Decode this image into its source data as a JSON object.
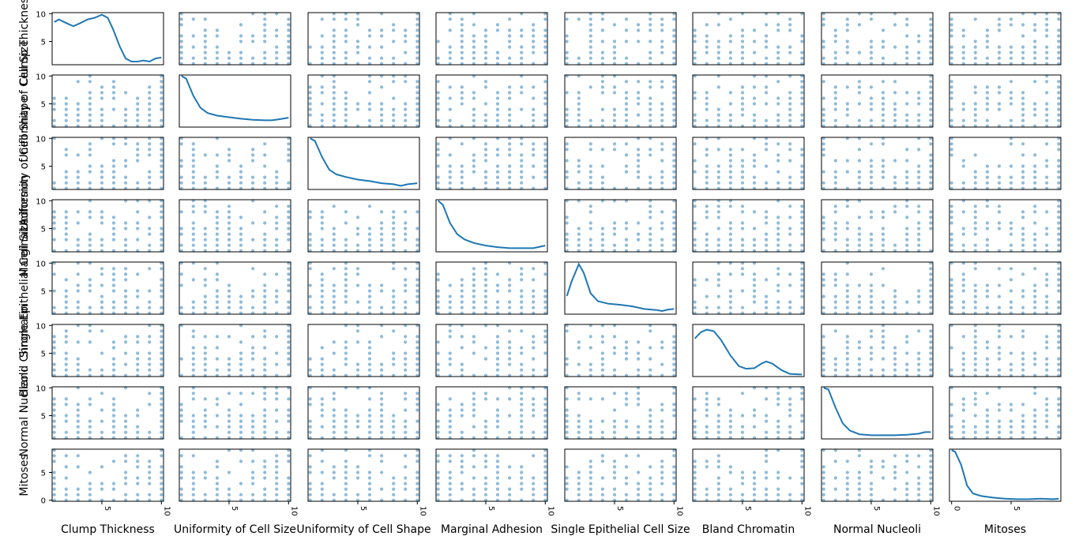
{
  "chart_data": {
    "type": "scatter",
    "kind": "scatter_matrix",
    "diagonal": "kde",
    "variables": [
      "Clump Thickness",
      "Uniformity of Cell Size",
      "Uniformity of Cell Shape",
      "Marginal Adhesion",
      "Single Epithelial Cell Size",
      "Bland Chromatin",
      "Normal Nucleoli",
      "Mitoses"
    ],
    "ticks": {
      "Clump Thickness": [
        5,
        10
      ],
      "Uniformity of Cell Size": [
        5,
        10
      ],
      "Uniformity of Cell Shape": [
        5,
        10
      ],
      "Marginal Adhesion": [
        5,
        10
      ],
      "Single Epithelial Cell Size": [
        5,
        10
      ],
      "Bland Chromatin": [
        5,
        10
      ],
      "Normal Nucleoli": [
        5,
        10
      ],
      "Mitoses": [
        0,
        5
      ]
    },
    "ranges": {
      "Clump Thickness": [
        1,
        10
      ],
      "Uniformity of Cell Size": [
        1,
        10
      ],
      "Uniformity of Cell Shape": [
        1,
        10
      ],
      "Marginal Adhesion": [
        1,
        10
      ],
      "Single Epithelial Cell Size": [
        1,
        10
      ],
      "Bland Chromatin": [
        1,
        10
      ],
      "Normal Nucleoli": [
        1,
        10
      ],
      "Mitoses": [
        0,
        9
      ]
    },
    "distinct_values": {
      "Clump Thickness": [
        1,
        2,
        3,
        4,
        5,
        6,
        7,
        8,
        9,
        10
      ],
      "Uniformity of Cell Size": [
        1,
        2,
        3,
        4,
        5,
        6,
        7,
        8,
        9,
        10
      ],
      "Uniformity of Cell Shape": [
        1,
        2,
        3,
        4,
        5,
        6,
        7,
        8,
        9,
        10
      ],
      "Marginal Adhesion": [
        1,
        2,
        3,
        4,
        5,
        6,
        7,
        8,
        9,
        10
      ],
      "Single Epithelial Cell Size": [
        1,
        2,
        3,
        4,
        5,
        6,
        7,
        8,
        9,
        10
      ],
      "Bland Chromatin": [
        1,
        2,
        3,
        4,
        5,
        6,
        7,
        8,
        9,
        10
      ],
      "Normal Nucleoli": [
        1,
        2,
        3,
        4,
        5,
        6,
        7,
        8,
        9,
        10
      ],
      "Mitoses": [
        0,
        1,
        2,
        3,
        4,
        5,
        6,
        7,
        8,
        9
      ]
    },
    "kde_curves": {
      "Clump Thickness": [
        [
          1,
          0.82
        ],
        [
          1.4,
          0.87
        ],
        [
          2,
          0.8
        ],
        [
          2.6,
          0.74
        ],
        [
          3.2,
          0.8
        ],
        [
          3.8,
          0.87
        ],
        [
          4.4,
          0.9
        ],
        [
          5,
          0.96
        ],
        [
          5.5,
          0.9
        ],
        [
          6,
          0.65
        ],
        [
          6.5,
          0.35
        ],
        [
          7,
          0.12
        ],
        [
          7.5,
          0.06
        ],
        [
          8,
          0.06
        ],
        [
          8.5,
          0.08
        ],
        [
          9,
          0.06
        ],
        [
          9.5,
          0.12
        ],
        [
          10,
          0.14
        ]
      ],
      "Uniformity of Cell Size": [
        [
          1,
          0.98
        ],
        [
          1.4,
          0.93
        ],
        [
          2,
          0.6
        ],
        [
          2.6,
          0.37
        ],
        [
          3.2,
          0.27
        ],
        [
          4,
          0.22
        ],
        [
          5,
          0.19
        ],
        [
          6,
          0.16
        ],
        [
          7,
          0.14
        ],
        [
          8,
          0.13
        ],
        [
          8.6,
          0.13
        ],
        [
          9.2,
          0.15
        ],
        [
          10,
          0.18
        ]
      ],
      "Uniformity of Cell Shape": [
        [
          1,
          0.98
        ],
        [
          1.4,
          0.93
        ],
        [
          2,
          0.62
        ],
        [
          2.6,
          0.38
        ],
        [
          3.2,
          0.29
        ],
        [
          4,
          0.24
        ],
        [
          5,
          0.19
        ],
        [
          6,
          0.16
        ],
        [
          7,
          0.12
        ],
        [
          8,
          0.1
        ],
        [
          8.6,
          0.07
        ],
        [
          9.2,
          0.1
        ],
        [
          10,
          0.12
        ]
      ],
      "Marginal Adhesion": [
        [
          1,
          0.98
        ],
        [
          1.4,
          0.9
        ],
        [
          2,
          0.55
        ],
        [
          2.6,
          0.34
        ],
        [
          3.2,
          0.24
        ],
        [
          4,
          0.17
        ],
        [
          5,
          0.12
        ],
        [
          6,
          0.09
        ],
        [
          7,
          0.07
        ],
        [
          8,
          0.07
        ],
        [
          9,
          0.07
        ],
        [
          9.6,
          0.1
        ],
        [
          10,
          0.12
        ]
      ],
      "Single Epithelial Cell Size": [
        [
          1,
          0.35
        ],
        [
          1.4,
          0.63
        ],
        [
          2,
          0.96
        ],
        [
          2.4,
          0.8
        ],
        [
          3,
          0.4
        ],
        [
          3.6,
          0.25
        ],
        [
          4.5,
          0.2
        ],
        [
          5.5,
          0.18
        ],
        [
          6.5,
          0.15
        ],
        [
          7.5,
          0.1
        ],
        [
          8.5,
          0.08
        ],
        [
          9,
          0.06
        ],
        [
          9.5,
          0.09
        ],
        [
          10,
          0.1
        ]
      ],
      "Bland Chromatin": [
        [
          1,
          0.73
        ],
        [
          1.5,
          0.85
        ],
        [
          2,
          0.9
        ],
        [
          2.6,
          0.87
        ],
        [
          3.2,
          0.7
        ],
        [
          4,
          0.4
        ],
        [
          4.7,
          0.2
        ],
        [
          5.3,
          0.15
        ],
        [
          6,
          0.16
        ],
        [
          6.6,
          0.25
        ],
        [
          7,
          0.29
        ],
        [
          7.5,
          0.25
        ],
        [
          8.3,
          0.12
        ],
        [
          9,
          0.05
        ],
        [
          10,
          0.04
        ]
      ],
      "Normal Nucleoli": [
        [
          1,
          0.98
        ],
        [
          1.4,
          0.95
        ],
        [
          2,
          0.6
        ],
        [
          2.6,
          0.3
        ],
        [
          3.2,
          0.16
        ],
        [
          4,
          0.09
        ],
        [
          5,
          0.07
        ],
        [
          6,
          0.07
        ],
        [
          7,
          0.07
        ],
        [
          8,
          0.08
        ],
        [
          9,
          0.1
        ],
        [
          9.5,
          0.13
        ],
        [
          10,
          0.13
        ]
      ],
      "Mitoses": [
        [
          0,
          0.98
        ],
        [
          0.3,
          0.95
        ],
        [
          0.8,
          0.7
        ],
        [
          1.3,
          0.3
        ],
        [
          1.8,
          0.15
        ],
        [
          2.5,
          0.1
        ],
        [
          3.5,
          0.07
        ],
        [
          4.5,
          0.05
        ],
        [
          5.5,
          0.04
        ],
        [
          6.5,
          0.04
        ],
        [
          7.5,
          0.05
        ],
        [
          8.5,
          0.04
        ],
        [
          9,
          0.05
        ]
      ]
    },
    "point_color": "#1f77b4",
    "point_alpha": 0.5,
    "title": "",
    "grid": false,
    "legend": "none"
  }
}
